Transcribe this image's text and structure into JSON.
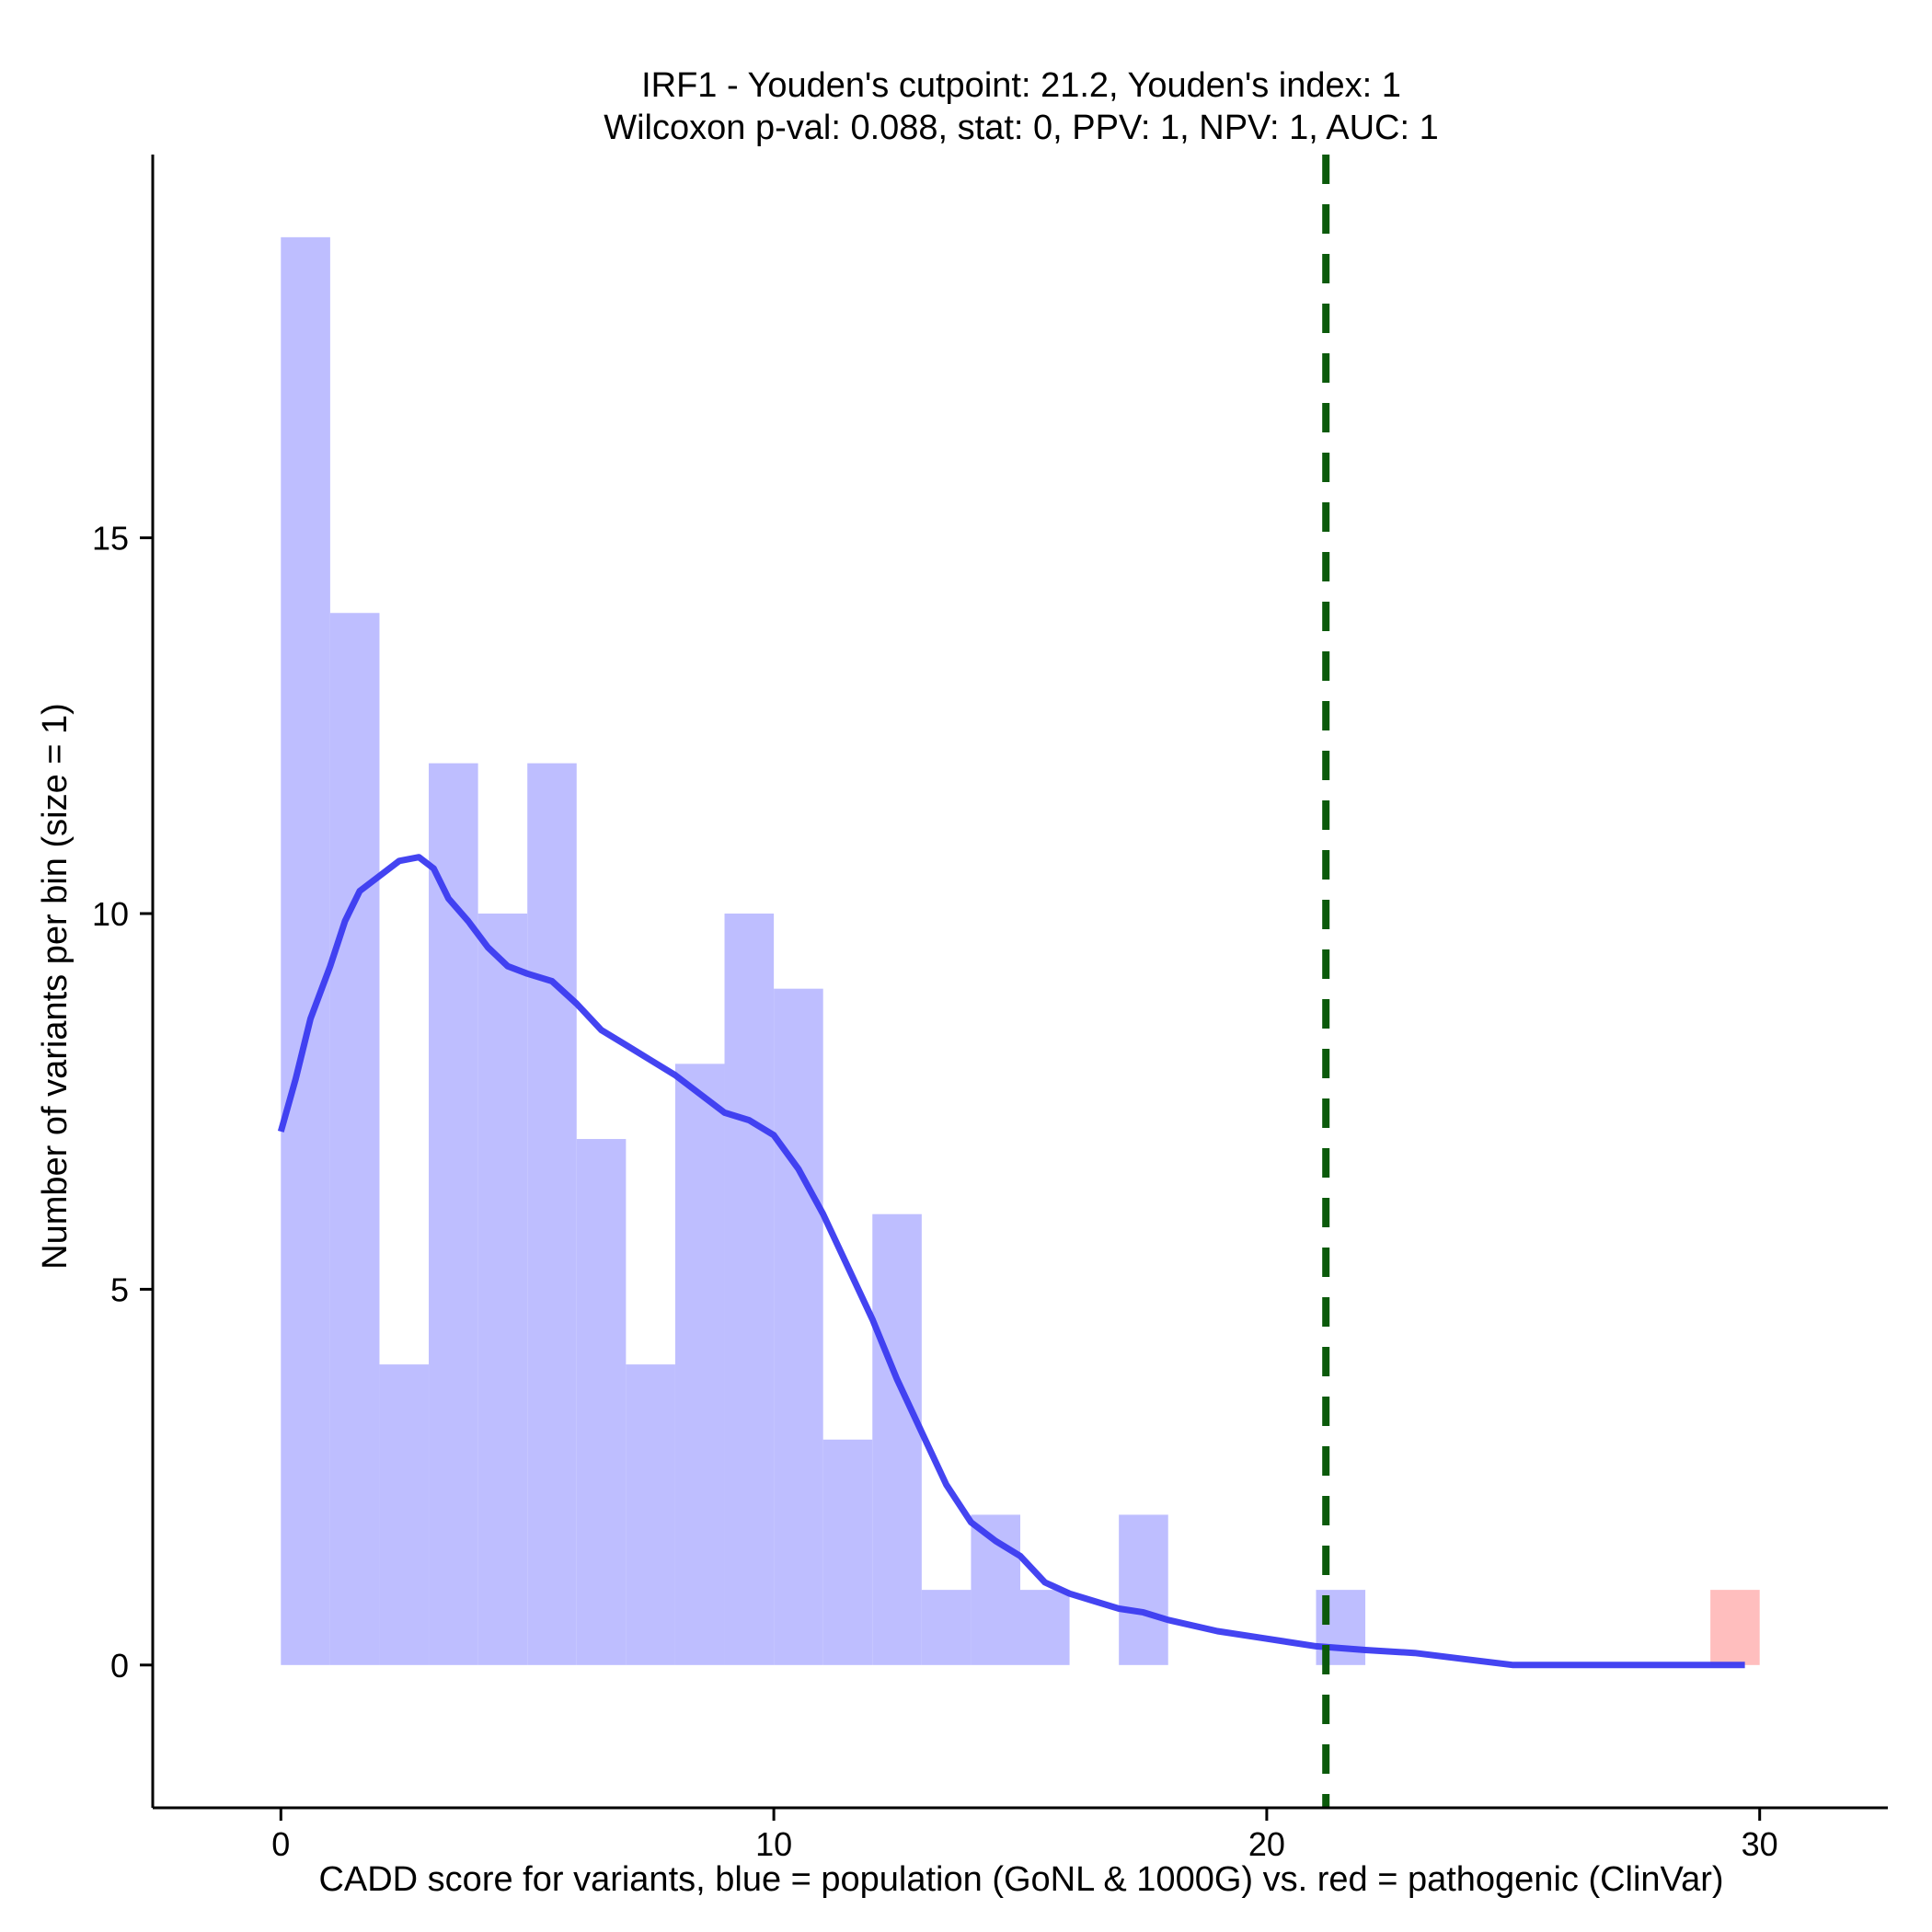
{
  "chart_data": {
    "type": "bar",
    "title": "IRF1 - Youden's cutpoint: 21.2, Youden's index: 1",
    "subtitle": "Wilcoxon p-val: 0.088, stat: 0, PPV: 1, NPV: 1, AUC: 1",
    "xlabel": "CADD score for variants, blue = population (GoNL & 1000G) vs. red = pathogenic (ClinVar)",
    "ylabel": "Number of variants per bin (size = 1)",
    "xlim": [
      -2.6,
      32.6
    ],
    "ylim": [
      -1.9,
      20.1
    ],
    "x_ticks": [
      0,
      10,
      20,
      30
    ],
    "y_ticks": [
      0,
      5,
      10,
      15
    ],
    "bin_size": 1,
    "series": [
      {
        "name": "population (GoNL & 1000G)",
        "color": "#bebeff",
        "bins": [
          {
            "x0": 0,
            "x1": 1,
            "count": 19
          },
          {
            "x0": 1,
            "x1": 2,
            "count": 14
          },
          {
            "x0": 2,
            "x1": 3,
            "count": 4
          },
          {
            "x0": 3,
            "x1": 4,
            "count": 12
          },
          {
            "x0": 4,
            "x1": 5,
            "count": 10
          },
          {
            "x0": 5,
            "x1": 6,
            "count": 12
          },
          {
            "x0": 6,
            "x1": 7,
            "count": 7
          },
          {
            "x0": 7,
            "x1": 8,
            "count": 4
          },
          {
            "x0": 8,
            "x1": 9,
            "count": 8
          },
          {
            "x0": 9,
            "x1": 10,
            "count": 10
          },
          {
            "x0": 10,
            "x1": 11,
            "count": 9
          },
          {
            "x0": 11,
            "x1": 12,
            "count": 3
          },
          {
            "x0": 12,
            "x1": 13,
            "count": 6
          },
          {
            "x0": 13,
            "x1": 14,
            "count": 1
          },
          {
            "x0": 14,
            "x1": 15,
            "count": 2
          },
          {
            "x0": 15,
            "x1": 16,
            "count": 1
          },
          {
            "x0": 17,
            "x1": 18,
            "count": 2
          },
          {
            "x0": 21,
            "x1": 22,
            "count": 1
          }
        ]
      },
      {
        "name": "pathogenic (ClinVar)",
        "color": "#ffbebe",
        "bins": [
          {
            "x0": 29,
            "x1": 30,
            "count": 1
          }
        ]
      }
    ],
    "density_line": {
      "color": "#3a3af0",
      "points": [
        [
          0.0,
          7.1
        ],
        [
          0.3,
          7.8
        ],
        [
          0.6,
          8.6
        ],
        [
          1.0,
          9.3
        ],
        [
          1.3,
          9.9
        ],
        [
          1.6,
          10.3
        ],
        [
          2.0,
          10.5
        ],
        [
          2.4,
          10.7
        ],
        [
          2.8,
          10.75
        ],
        [
          3.1,
          10.6
        ],
        [
          3.4,
          10.2
        ],
        [
          3.8,
          9.9
        ],
        [
          4.2,
          9.55
        ],
        [
          4.6,
          9.3
        ],
        [
          5.0,
          9.2
        ],
        [
          5.5,
          9.1
        ],
        [
          6.0,
          8.8
        ],
        [
          6.5,
          8.45
        ],
        [
          7.0,
          8.25
        ],
        [
          7.5,
          8.05
        ],
        [
          8.0,
          7.85
        ],
        [
          8.5,
          7.6
        ],
        [
          9.0,
          7.35
        ],
        [
          9.5,
          7.25
        ],
        [
          10.0,
          7.05
        ],
        [
          10.5,
          6.6
        ],
        [
          11.0,
          6.0
        ],
        [
          11.5,
          5.3
        ],
        [
          12.0,
          4.6
        ],
        [
          12.5,
          3.8
        ],
        [
          13.0,
          3.1
        ],
        [
          13.5,
          2.4
        ],
        [
          14.0,
          1.9
        ],
        [
          14.5,
          1.65
        ],
        [
          15.0,
          1.45
        ],
        [
          15.5,
          1.1
        ],
        [
          16.0,
          0.95
        ],
        [
          16.5,
          0.85
        ],
        [
          17.0,
          0.75
        ],
        [
          17.5,
          0.7
        ],
        [
          18.0,
          0.6
        ],
        [
          19.0,
          0.45
        ],
        [
          20.0,
          0.35
        ],
        [
          21.0,
          0.25
        ],
        [
          22.0,
          0.2
        ],
        [
          23.0,
          0.16
        ],
        [
          24.0,
          0.08
        ],
        [
          25.0,
          0.0
        ],
        [
          27.0,
          0.0
        ],
        [
          29.7,
          0.0
        ]
      ]
    },
    "cutpoint": {
      "x": 21.2,
      "color": "#0b5a0b",
      "style": "dashed"
    }
  }
}
